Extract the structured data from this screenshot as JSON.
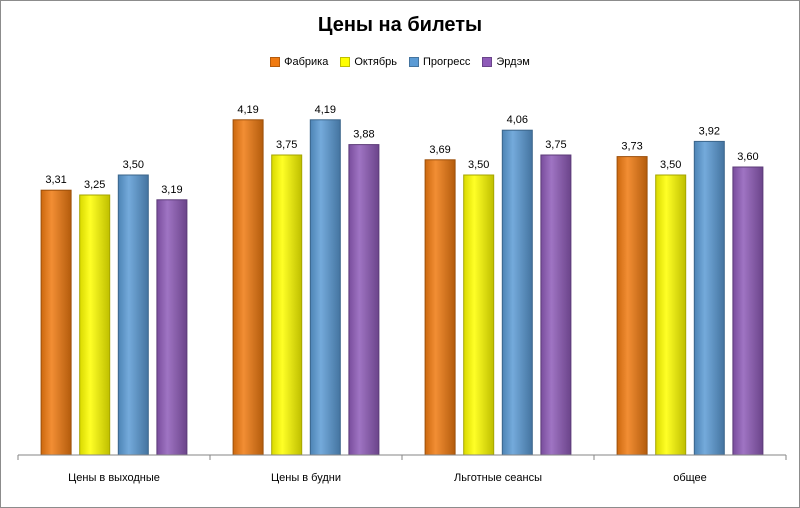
{
  "chart_data": {
    "type": "bar",
    "title": "Цены на билеты",
    "xlabel": "",
    "ylabel": "",
    "ylim": [
      0,
      4.5
    ],
    "grid": false,
    "legend_position": "top",
    "categories": [
      "Цены в выходные",
      "Цены в будни",
      "Льготные сеансы",
      "общее"
    ],
    "series": [
      {
        "name": "Фабрика",
        "color": "#f07a10",
        "values": [
          3.31,
          4.19,
          3.69,
          3.73
        ],
        "labels": [
          "3,31",
          "4,19",
          "3,69",
          "3,73"
        ]
      },
      {
        "name": "Октябрь",
        "color": "#ffff00",
        "values": [
          3.25,
          3.75,
          3.5,
          3.5
        ],
        "labels": [
          "3,25",
          "3,75",
          "3,50",
          "3,50"
        ]
      },
      {
        "name": "Прогресс",
        "color": "#5b9bd5",
        "values": [
          3.5,
          4.19,
          4.06,
          3.92
        ],
        "labels": [
          "3,50",
          "4,19",
          "4,06",
          "3,92"
        ]
      },
      {
        "name": "Эрдэм",
        "color": "#8e5bb8",
        "values": [
          3.19,
          3.88,
          3.75,
          3.6
        ],
        "labels": [
          "3,19",
          "3,88",
          "3,75",
          "3,60"
        ]
      }
    ]
  }
}
